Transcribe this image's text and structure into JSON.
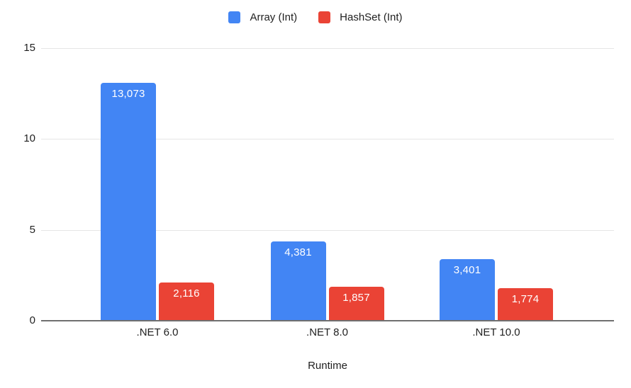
{
  "legend": {
    "items": [
      {
        "label": "Array (Int)",
        "color": "#4285F4"
      },
      {
        "label": "HashSet (Int)",
        "color": "#EA4335"
      }
    ]
  },
  "chart_data": {
    "type": "bar",
    "title": "",
    "categories": [
      ".NET 6.0",
      ".NET 8.0",
      ".NET 10.0"
    ],
    "series": [
      {
        "name": "Array (Int)",
        "color": "#4285F4",
        "values": [
          13073,
          4381,
          3401
        ],
        "value_labels": [
          "13,073",
          "4,381",
          "3,401"
        ]
      },
      {
        "name": "HashSet (Int)",
        "color": "#EA4335",
        "values": [
          2116,
          1857,
          1774
        ],
        "value_labels": [
          "2,116",
          "1,857",
          "1,774"
        ]
      }
    ],
    "xlabel": "Runtime",
    "ylabel": "",
    "y_ticks": [
      0,
      5,
      10,
      15
    ],
    "y_tick_labels": [
      "0",
      "5",
      "10",
      "15"
    ],
    "ylim": [
      0,
      15
    ],
    "axis_value_scale": 1000,
    "grid": true,
    "legend_position": "top",
    "colors": {
      "gridline": "#e6e6e6",
      "baseline": "#6f6f6f",
      "axis_text": "#1f1f1f",
      "bar_label_text": "#ffffff",
      "background": "#ffffff"
    }
  }
}
